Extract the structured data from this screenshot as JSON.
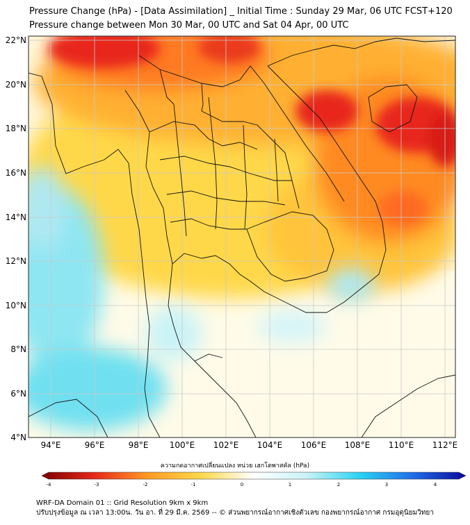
{
  "title_line1": "Pressure Change (hPa) - [Data Assimilation] _ Initial Time : Sunday 29 Mar, 06 UTC FCST+120",
  "title_line2": "Pressure change between Mon 30 Mar, 00 UTC and Sat 04 Apr, 00 UTC",
  "lat_labels": [
    "22°N",
    "20°N",
    "18°N",
    "16°N",
    "14°N",
    "12°N",
    "10°N",
    "8°N",
    "6°N",
    "4°N"
  ],
  "lon_labels": [
    "94°E",
    "96°E",
    "98°E",
    "100°E",
    "102°E",
    "104°E",
    "106°E",
    "108°E",
    "110°E",
    "112°E"
  ],
  "colorbar_title": "ความกดอากาศเปลี่ยนแปลง หน่วย เฮกโตพาสคัล (hPa)",
  "colorbar_ticks": [
    "-4",
    "-3",
    "-2",
    "-1",
    "0",
    "1",
    "2",
    "3",
    "4"
  ],
  "footer_line1": "WRF-DA Domain 01 :: Grid Resolution 9km x 9km",
  "footer_line2": "ปรับปรุงข้อมูล ณ เวลา 13:00น. วัน อา. ที่ 29 มี.ค. 2569 -- © ส่วนพยากรณ์อากาศเชิงตัวเลข กองพยากรณ์อากาศ กรมอุตุนิยมวิทยา",
  "map": {
    "lat_range": [
      4,
      22.2
    ],
    "lon_range": [
      93,
      112.5
    ],
    "colors": {
      "strong_fall": "#e8281a",
      "moderate_fall": "#ff9a24",
      "slight_fall": "#ffd84a",
      "near_zero": "#fffbe8",
      "slight_rise": "#aee8f2",
      "moderate_rise": "#6fe0f0",
      "border": "#111111",
      "grid": "#c8c8c8"
    }
  },
  "colorbar_colors": [
    "#7a0000",
    "#e8281a",
    "#ff9a24",
    "#ffd84a",
    "#ffffff",
    "#c9f3f7",
    "#2ad3f2",
    "#1e6de8",
    "#0a0a9a"
  ]
}
